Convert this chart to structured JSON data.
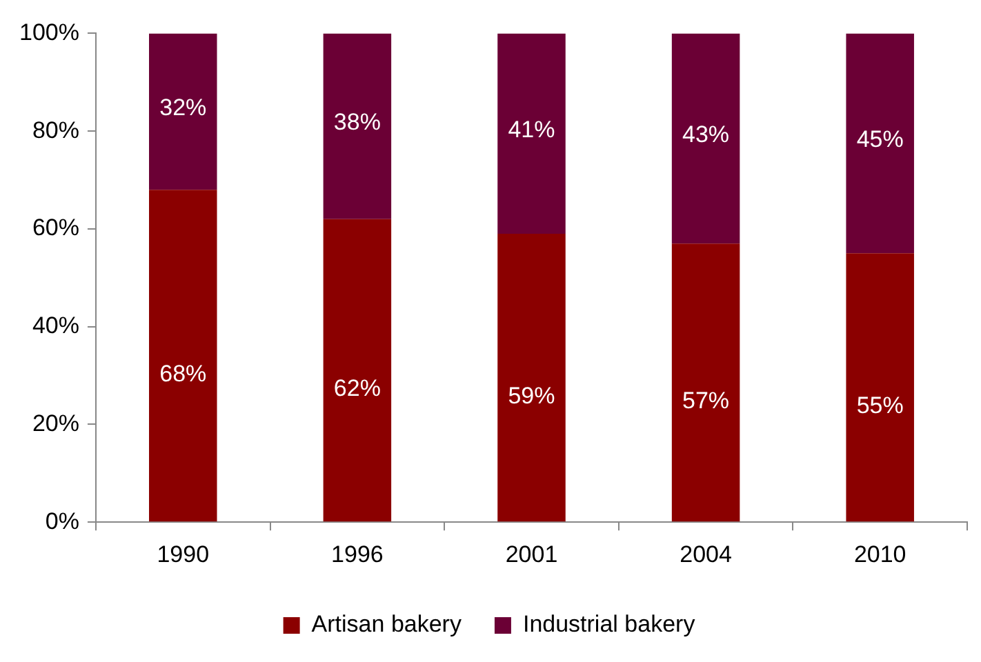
{
  "chart_data": {
    "type": "bar",
    "stacked": true,
    "categories": [
      "1990",
      "1996",
      "2001",
      "2004",
      "2010"
    ],
    "series": [
      {
        "name": "Artisan bakery",
        "color": "#8b0000",
        "values": [
          68,
          62,
          59,
          57,
          55
        ],
        "value_labels": [
          "68%",
          "62%",
          "59%",
          "57%",
          "55%"
        ]
      },
      {
        "name": "Industrial bakery",
        "color": "#6b0035",
        "values": [
          32,
          38,
          41,
          43,
          45
        ],
        "value_labels": [
          "32%",
          "38%",
          "41%",
          "43%",
          "45%"
        ]
      }
    ],
    "ylim": [
      0,
      100
    ],
    "yticks": [
      {
        "value": 0,
        "label": "0%"
      },
      {
        "value": 20,
        "label": "20%"
      },
      {
        "value": 40,
        "label": "40%"
      },
      {
        "value": 60,
        "label": "60%"
      },
      {
        "value": 80,
        "label": "80%"
      },
      {
        "value": 100,
        "label": "100%"
      }
    ],
    "grid": false,
    "legend": "bottom"
  }
}
